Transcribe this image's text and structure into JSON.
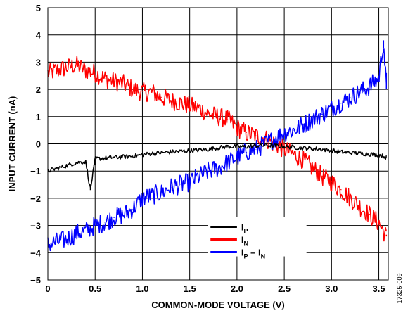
{
  "figure_id": "17325-009",
  "chart_data": {
    "type": "line",
    "xlabel": "COMMON-MODE VOLTAGE (V)",
    "ylabel": "INPUT CURRENT (nA)",
    "xlim": [
      0,
      3.6
    ],
    "ylim": [
      -5,
      5
    ],
    "xticks": [
      "0",
      "0.5",
      "1.0",
      "1.5",
      "2.0",
      "2.5",
      "3.0",
      "3.5"
    ],
    "xtick_values": [
      0,
      0.5,
      1.0,
      1.5,
      2.0,
      2.5,
      3.0,
      3.5
    ],
    "yticks": [
      "5",
      "4",
      "3",
      "2",
      "1",
      "0",
      "−1",
      "−2",
      "−3",
      "−4",
      "−5"
    ],
    "ytick_values": [
      5,
      4,
      3,
      2,
      1,
      0,
      -1,
      -2,
      -3,
      -4,
      -5
    ],
    "grid": true,
    "legend_position": "bottom-right",
    "series": [
      {
        "name": "I_P",
        "label_main": "I",
        "label_sub": "P",
        "label_rest": "",
        "color": "#000000",
        "x": [
          0,
          0.1,
          0.2,
          0.3,
          0.4,
          0.45,
          0.5,
          0.7,
          0.9,
          1.1,
          1.3,
          1.5,
          1.7,
          1.9,
          2.1,
          2.3,
          2.5,
          2.7,
          2.9,
          3.1,
          3.3,
          3.5,
          3.58
        ],
        "y": [
          -1.0,
          -0.9,
          -0.8,
          -0.7,
          -0.65,
          -1.7,
          -0.55,
          -0.5,
          -0.45,
          -0.35,
          -0.3,
          -0.25,
          -0.2,
          -0.1,
          -0.1,
          -0.05,
          -0.1,
          -0.15,
          -0.2,
          -0.3,
          -0.35,
          -0.4,
          -0.5
        ],
        "noise": 0.08
      },
      {
        "name": "I_N",
        "label_main": "I",
        "label_sub": "N",
        "label_rest": "",
        "color": "#ff0000",
        "x": [
          0,
          0.1,
          0.2,
          0.3,
          0.4,
          0.5,
          0.6,
          0.7,
          0.8,
          0.9,
          1.0,
          1.1,
          1.2,
          1.3,
          1.4,
          1.5,
          1.6,
          1.7,
          1.8,
          1.9,
          2.0,
          2.1,
          2.2,
          2.3,
          2.4,
          2.5,
          2.6,
          2.7,
          2.8,
          2.9,
          3.0,
          3.1,
          3.2,
          3.3,
          3.4,
          3.5,
          3.58
        ],
        "y": [
          2.6,
          2.7,
          2.8,
          2.9,
          2.7,
          2.6,
          2.4,
          2.3,
          2.2,
          2.0,
          1.9,
          1.9,
          1.7,
          1.6,
          1.5,
          1.4,
          1.3,
          1.1,
          1.0,
          0.9,
          0.6,
          0.4,
          0.3,
          0.2,
          0.0,
          -0.2,
          -0.4,
          -0.6,
          -0.9,
          -1.2,
          -1.4,
          -1.7,
          -2.0,
          -2.3,
          -2.6,
          -2.9,
          -3.4
        ],
        "noise": 0.35
      },
      {
        "name": "I_P – I_N",
        "label_main": "I",
        "label_sub": "P",
        "label_rest": " – I",
        "label_sub2": "N",
        "color": "#0000ff",
        "x": [
          0,
          0.1,
          0.2,
          0.3,
          0.4,
          0.5,
          0.6,
          0.7,
          0.8,
          0.9,
          1.0,
          1.1,
          1.2,
          1.3,
          1.4,
          1.5,
          1.6,
          1.7,
          1.8,
          1.9,
          2.0,
          2.1,
          2.2,
          2.3,
          2.4,
          2.5,
          2.6,
          2.7,
          2.8,
          2.9,
          3.0,
          3.1,
          3.2,
          3.3,
          3.4,
          3.5,
          3.55,
          3.58
        ],
        "y": [
          -3.7,
          -3.6,
          -3.5,
          -3.3,
          -3.2,
          -3.0,
          -2.9,
          -2.7,
          -2.6,
          -2.4,
          -2.0,
          -1.9,
          -1.8,
          -1.6,
          -1.5,
          -1.4,
          -1.2,
          -1.0,
          -0.9,
          -0.7,
          -0.5,
          -0.3,
          -0.2,
          0.0,
          0.2,
          0.4,
          0.5,
          0.7,
          0.9,
          1.1,
          1.3,
          1.5,
          1.7,
          1.9,
          2.1,
          2.4,
          3.8,
          2.0
        ],
        "noise": 0.35
      }
    ]
  }
}
